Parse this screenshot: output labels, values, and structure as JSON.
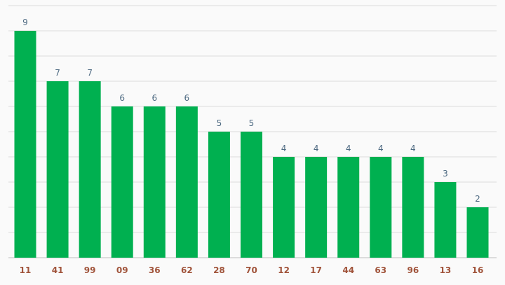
{
  "chart_data": {
    "type": "bar",
    "title": "",
    "xlabel": "",
    "ylabel": "",
    "categories": [
      "11",
      "41",
      "99",
      "09",
      "36",
      "62",
      "28",
      "70",
      "12",
      "17",
      "44",
      "63",
      "96",
      "13",
      "16"
    ],
    "values": [
      9,
      7,
      7,
      6,
      6,
      6,
      5,
      5,
      4,
      4,
      4,
      4,
      4,
      3,
      2
    ],
    "ylim": [
      0,
      10
    ],
    "grid": true,
    "legend": "none",
    "colors": {
      "bar": "#00b050",
      "value_label": "#4e6a82",
      "category_label": "#a0533a",
      "grid": "#dcdcdc",
      "background": "#fafafa"
    }
  }
}
